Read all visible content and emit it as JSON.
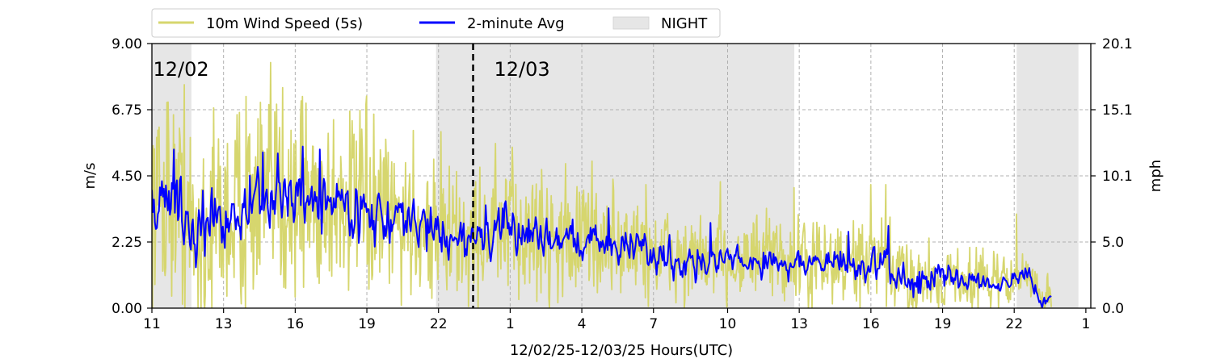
{
  "chart_data": {
    "type": "line",
    "title": "",
    "xlabel": "12/02/25-12/03/25  Hours(UTC)",
    "ylabel": "m/s",
    "ylabel_right": "mph",
    "x_unit": "hours since 12/02 00:00 UTC",
    "xlim": [
      11,
      49
    ],
    "ylim": [
      0,
      9
    ],
    "ylim_right": [
      0,
      20.1
    ],
    "x_ticks": [
      {
        "x": 11,
        "label": "11"
      },
      {
        "x": 13.9,
        "label": "13"
      },
      {
        "x": 16.8,
        "label": "16"
      },
      {
        "x": 19.7,
        "label": "19"
      },
      {
        "x": 22.6,
        "label": "22"
      },
      {
        "x": 25.5,
        "label": "1"
      },
      {
        "x": 28.4,
        "label": "4"
      },
      {
        "x": 31.3,
        "label": "7"
      },
      {
        "x": 34.3,
        "label": "10"
      },
      {
        "x": 37.2,
        "label": "13"
      },
      {
        "x": 40.1,
        "label": "16"
      },
      {
        "x": 43.0,
        "label": "19"
      },
      {
        "x": 45.9,
        "label": "22"
      },
      {
        "x": 48.8,
        "label": "1"
      }
    ],
    "y_ticks": [
      "0.00",
      "2.25",
      "4.50",
      "6.75",
      "9.00"
    ],
    "y_ticks_right": [
      "0.0",
      "5.0",
      "10.1",
      "15.1",
      "20.1"
    ],
    "grid": true,
    "legend_position": "top-left, above plot",
    "legend": [
      {
        "label": "10m Wind Speed (5s)",
        "kind": "line",
        "color": "#d6d66e"
      },
      {
        "label": "2-minute Avg",
        "kind": "line",
        "color": "#0000ff"
      },
      {
        "label": "NIGHT",
        "kind": "patch",
        "color": "#e6e6e6"
      }
    ],
    "night_periods": [
      [
        11,
        12.6
      ],
      [
        22.5,
        37.0
      ],
      [
        46.0,
        48.5
      ]
    ],
    "day_divider": {
      "x": 24.0,
      "style": "dashed",
      "color": "#000000"
    },
    "day_labels": [
      {
        "x": 11.05,
        "label": "12/02"
      },
      {
        "x": 24.85,
        "label": "12/03"
      }
    ],
    "series": [
      {
        "name": "10m Wind Speed (5s)",
        "color": "#d6d66e",
        "x_start": 11,
        "x_end": 47.4,
        "mean": [
          [
            11,
            3.7
          ],
          [
            12,
            3.8
          ],
          [
            12.6,
            2.4
          ],
          [
            14,
            3.2
          ],
          [
            15.5,
            3.6
          ],
          [
            17,
            3.8
          ],
          [
            19,
            3.5
          ],
          [
            20.5,
            3.0
          ],
          [
            22,
            2.9
          ],
          [
            23.5,
            2.3
          ],
          [
            25,
            2.6
          ],
          [
            27,
            2.5
          ],
          [
            28.5,
            2.3
          ],
          [
            30,
            2.2
          ],
          [
            31.5,
            1.8
          ],
          [
            33,
            1.6
          ],
          [
            35,
            1.7
          ],
          [
            36,
            1.7
          ],
          [
            37.5,
            1.5
          ],
          [
            39,
            1.5
          ],
          [
            40.5,
            1.5
          ],
          [
            41.5,
            1.0
          ],
          [
            43,
            1.0
          ],
          [
            44.5,
            1.0
          ],
          [
            45.5,
            0.9
          ],
          [
            46.5,
            1.1
          ],
          [
            47.0,
            0.3
          ],
          [
            47.4,
            0.5
          ]
        ],
        "spread": [
          [
            11,
            1.9
          ],
          [
            14,
            2.0
          ],
          [
            17,
            2.0
          ],
          [
            20,
            1.6
          ],
          [
            23,
            1.3
          ],
          [
            26,
            1.3
          ],
          [
            29,
            1.1
          ],
          [
            32,
            0.9
          ],
          [
            35,
            0.8
          ],
          [
            38,
            0.8
          ],
          [
            41,
            0.8
          ],
          [
            44,
            0.6
          ],
          [
            47,
            0.4
          ],
          [
            47.4,
            0.3
          ]
        ],
        "peaks": [
          [
            11.6,
            7.0
          ],
          [
            12.3,
            7.6
          ],
          [
            14.8,
            7.2
          ],
          [
            15.4,
            7.0
          ],
          [
            16.3,
            7.5
          ],
          [
            17.1,
            7.2
          ],
          [
            19.0,
            6.7
          ],
          [
            22.7,
            6.0
          ],
          [
            24.9,
            5.6
          ],
          [
            28.8,
            5.0
          ],
          [
            31.0,
            4.2
          ],
          [
            34.0,
            4.3
          ],
          [
            37.0,
            4.1
          ],
          [
            40.1,
            4.2
          ],
          [
            40.7,
            4.2
          ],
          [
            46.0,
            3.2
          ]
        ]
      },
      {
        "name": "2-minute Avg",
        "color": "#0000ff",
        "x_start": 11,
        "x_end": 47.4,
        "mean": [
          [
            11,
            3.6
          ],
          [
            12,
            3.8
          ],
          [
            12.6,
            2.4
          ],
          [
            14,
            3.2
          ],
          [
            15.5,
            3.6
          ],
          [
            17,
            3.8
          ],
          [
            19,
            3.5
          ],
          [
            20.5,
            3.0
          ],
          [
            22,
            2.8
          ],
          [
            23.5,
            2.3
          ],
          [
            25,
            2.6
          ],
          [
            27,
            2.5
          ],
          [
            28.5,
            2.3
          ],
          [
            30,
            2.2
          ],
          [
            31.5,
            1.8
          ],
          [
            33,
            1.6
          ],
          [
            35,
            1.6
          ],
          [
            36,
            1.6
          ],
          [
            37.5,
            1.5
          ],
          [
            39,
            1.5
          ],
          [
            40.5,
            1.4
          ],
          [
            41.5,
            1.0
          ],
          [
            43,
            1.0
          ],
          [
            44.5,
            1.0
          ],
          [
            45.5,
            0.9
          ],
          [
            46.5,
            1.1
          ],
          [
            47.0,
            0.0
          ],
          [
            47.4,
            0.6
          ]
        ],
        "spread": [
          [
            11,
            0.8
          ],
          [
            14,
            0.9
          ],
          [
            17,
            0.9
          ],
          [
            20,
            0.7
          ],
          [
            23,
            0.6
          ],
          [
            26,
            0.6
          ],
          [
            29,
            0.5
          ],
          [
            32,
            0.5
          ],
          [
            35,
            0.4
          ],
          [
            38,
            0.4
          ],
          [
            41,
            0.5
          ],
          [
            44,
            0.3
          ],
          [
            47,
            0.2
          ],
          [
            47.4,
            0.2
          ]
        ],
        "peaks": [
          [
            11.9,
            5.4
          ],
          [
            15.5,
            5.3
          ],
          [
            17.1,
            5.5
          ],
          [
            17.8,
            5.4
          ],
          [
            24.5,
            3.5
          ],
          [
            29.5,
            3.4
          ],
          [
            33.6,
            2.9
          ],
          [
            39.2,
            2.6
          ],
          [
            40.8,
            2.8
          ]
        ]
      }
    ]
  }
}
